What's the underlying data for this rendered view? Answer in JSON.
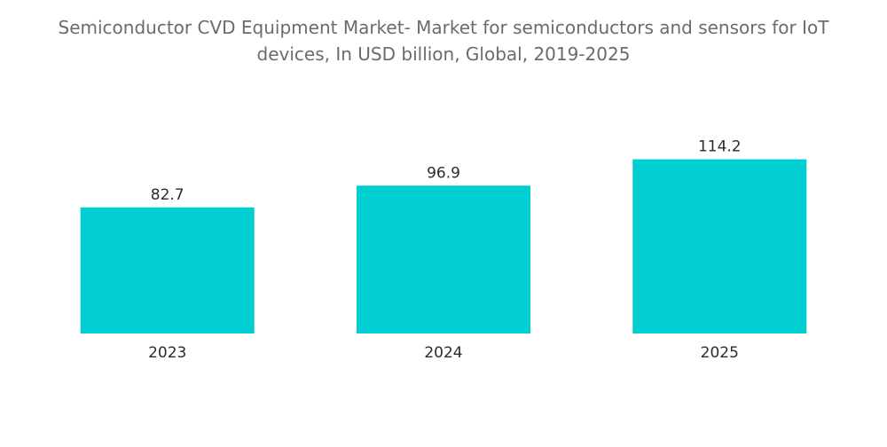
{
  "chart_data": {
    "type": "bar",
    "title_line1": "Semiconductor CVD Equipment Market- Market for semiconductors and sensors for IoT",
    "title_line2": "devices, In USD billion, Global, 2019-2025",
    "xlabel": "",
    "ylabel": "",
    "categories": [
      "2023",
      "2024",
      "2025"
    ],
    "values": [
      82.7,
      96.9,
      114.2
    ],
    "data_labels": [
      "82.7",
      "96.9",
      "114.2"
    ],
    "ylim": [
      0,
      140
    ],
    "grid": false,
    "legend": "none",
    "bar_color": "#00CED1"
  }
}
